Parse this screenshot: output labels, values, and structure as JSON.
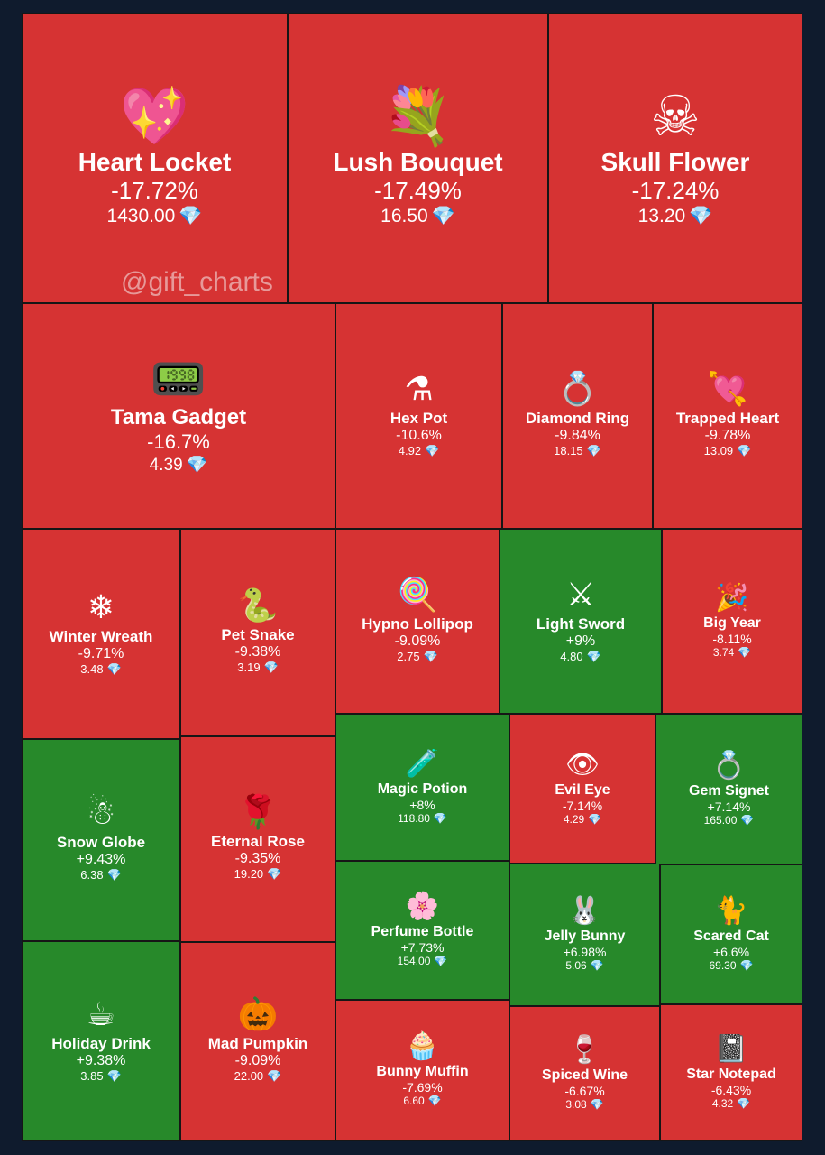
{
  "watermark": "@gift_charts",
  "colors": {
    "down": "#d63333",
    "up": "#27892a",
    "gem": "#6ecbff"
  },
  "chart_data": {
    "type": "treemap",
    "items": [
      {
        "name": "Heart Locket",
        "change": "-17.72%",
        "value": -17.72,
        "price": "1430.00",
        "icon": "heart-locket-icon",
        "glyph": "💖"
      },
      {
        "name": "Lush Bouquet",
        "change": "-17.49%",
        "value": -17.49,
        "price": "16.50",
        "icon": "bouquet-icon",
        "glyph": "💐"
      },
      {
        "name": "Skull Flower",
        "change": "-17.24%",
        "value": -17.24,
        "price": "13.20",
        "icon": "skull-flower-icon",
        "glyph": "☠"
      },
      {
        "name": "Tama Gadget",
        "change": "-16.7%",
        "value": -16.7,
        "price": "4.39",
        "icon": "tama-gadget-icon",
        "glyph": "📟"
      },
      {
        "name": "Hex Pot",
        "change": "-10.6%",
        "value": -10.6,
        "price": "4.92",
        "icon": "cauldron-icon",
        "glyph": "⚗"
      },
      {
        "name": "Diamond Ring",
        "change": "-9.84%",
        "value": -9.84,
        "price": "18.15",
        "icon": "ring-box-icon",
        "glyph": "💍"
      },
      {
        "name": "Trapped Heart",
        "change": "-9.78%",
        "value": -9.78,
        "price": "13.09",
        "icon": "trapped-heart-icon",
        "glyph": "💘"
      },
      {
        "name": "Winter Wreath",
        "change": "-9.71%",
        "value": -9.71,
        "price": "3.48",
        "icon": "wreath-icon",
        "glyph": "❄"
      },
      {
        "name": "Pet Snake",
        "change": "-9.38%",
        "value": -9.38,
        "price": "3.19",
        "icon": "snake-icon",
        "glyph": "🐍"
      },
      {
        "name": "Hypno Lollipop",
        "change": "-9.09%",
        "value": -9.09,
        "price": "2.75",
        "icon": "lollipop-icon",
        "glyph": "🍭"
      },
      {
        "name": "Light Sword",
        "change": "+9%",
        "value": 9,
        "price": "4.80",
        "icon": "light-sword-icon",
        "glyph": "⚔"
      },
      {
        "name": "Big Year",
        "change": "-8.11%",
        "value": -8.11,
        "price": "3.74",
        "icon": "big-year-icon",
        "glyph": "🎉"
      },
      {
        "name": "Snow Globe",
        "change": "+9.43%",
        "value": 9.43,
        "price": "6.38",
        "icon": "snow-globe-icon",
        "glyph": "☃"
      },
      {
        "name": "Eternal Rose",
        "change": "-9.35%",
        "value": -9.35,
        "price": "19.20",
        "icon": "rose-icon",
        "glyph": "🌹"
      },
      {
        "name": "Magic Potion",
        "change": "+8%",
        "value": 8,
        "price": "118.80",
        "icon": "potion-icon",
        "glyph": "🧪"
      },
      {
        "name": "Evil Eye",
        "change": "-7.14%",
        "value": -7.14,
        "price": "4.29",
        "icon": "eye-icon",
        "glyph": "👁"
      },
      {
        "name": "Gem Signet",
        "change": "+7.14%",
        "value": 7.14,
        "price": "165.00",
        "icon": "gem-signet-icon",
        "glyph": "💍"
      },
      {
        "name": "Perfume Bottle",
        "change": "+7.73%",
        "value": 7.73,
        "price": "154.00",
        "icon": "perfume-icon",
        "glyph": "🌸"
      },
      {
        "name": "Jelly Bunny",
        "change": "+6.98%",
        "value": 6.98,
        "price": "5.06",
        "icon": "jelly-bunny-icon",
        "glyph": "🐰"
      },
      {
        "name": "Scared Cat",
        "change": "+6.6%",
        "value": 6.6,
        "price": "69.30",
        "icon": "cat-icon",
        "glyph": "🐈"
      },
      {
        "name": "Holiday Drink",
        "change": "+9.38%",
        "value": 9.38,
        "price": "3.85",
        "icon": "holiday-drink-icon",
        "glyph": "☕"
      },
      {
        "name": "Mad Pumpkin",
        "change": "-9.09%",
        "value": -9.09,
        "price": "22.00",
        "icon": "pumpkin-icon",
        "glyph": "🎃"
      },
      {
        "name": "Bunny Muffin",
        "change": "-7.69%",
        "value": -7.69,
        "price": "6.60",
        "icon": "muffin-icon",
        "glyph": "🧁"
      },
      {
        "name": "Spiced Wine",
        "change": "-6.67%",
        "value": -6.67,
        "price": "3.08",
        "icon": "wine-icon",
        "glyph": "🍷"
      },
      {
        "name": "Star Notepad",
        "change": "-6.43%",
        "value": -6.43,
        "price": "4.32",
        "icon": "notepad-icon",
        "glyph": "📓"
      }
    ]
  }
}
